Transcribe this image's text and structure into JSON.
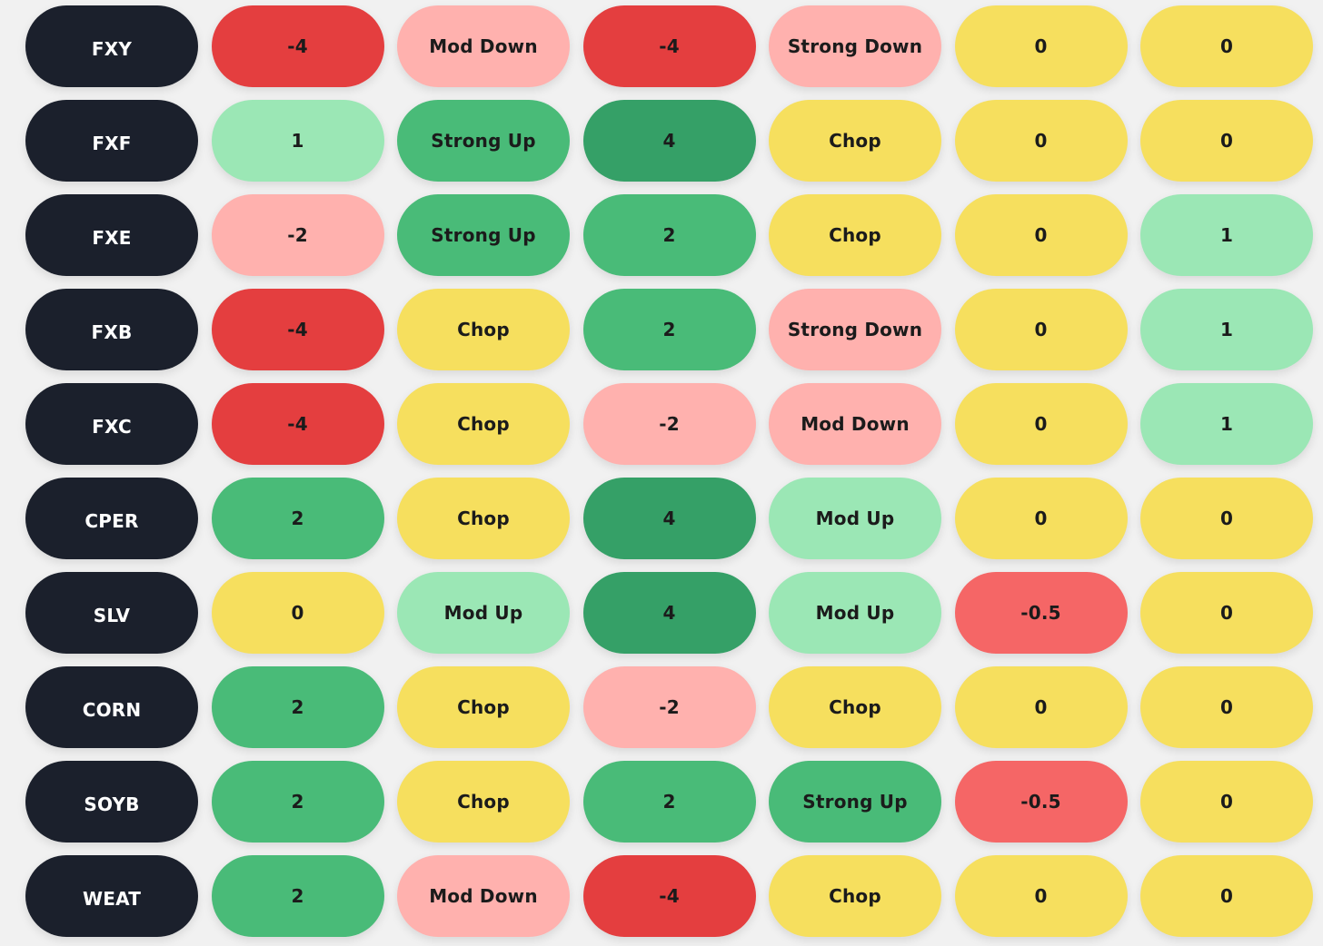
{
  "colors": {
    "ticker": "#1b202c",
    "strongdown": "#e43e3f",
    "moddown": "#ffb1ae",
    "weakdown": "#f56666",
    "neutral": "#f6df5e",
    "modup": "#9be7b5",
    "strongup": "#49bb78",
    "maxup": "#35a067"
  },
  "rows": [
    {
      "ticker": "FXY",
      "cells": [
        {
          "text": "-4",
          "tone": "strongdown"
        },
        {
          "text": "Mod Down",
          "tone": "moddown"
        },
        {
          "text": "-4",
          "tone": "strongdown"
        },
        {
          "text": "Strong Down",
          "tone": "moddown"
        },
        {
          "text": "0",
          "tone": "neutral"
        },
        {
          "text": "0",
          "tone": "neutral"
        }
      ]
    },
    {
      "ticker": "FXF",
      "cells": [
        {
          "text": "1",
          "tone": "modup"
        },
        {
          "text": "Strong Up",
          "tone": "strongup"
        },
        {
          "text": "4",
          "tone": "maxup"
        },
        {
          "text": "Chop",
          "tone": "neutral"
        },
        {
          "text": "0",
          "tone": "neutral"
        },
        {
          "text": "0",
          "tone": "neutral"
        }
      ]
    },
    {
      "ticker": "FXE",
      "cells": [
        {
          "text": "-2",
          "tone": "moddown"
        },
        {
          "text": "Strong Up",
          "tone": "strongup"
        },
        {
          "text": "2",
          "tone": "strongup"
        },
        {
          "text": "Chop",
          "tone": "neutral"
        },
        {
          "text": "0",
          "tone": "neutral"
        },
        {
          "text": "1",
          "tone": "modup"
        }
      ]
    },
    {
      "ticker": "FXB",
      "cells": [
        {
          "text": "-4",
          "tone": "strongdown"
        },
        {
          "text": "Chop",
          "tone": "neutral"
        },
        {
          "text": "2",
          "tone": "strongup"
        },
        {
          "text": "Strong Down",
          "tone": "moddown"
        },
        {
          "text": "0",
          "tone": "neutral"
        },
        {
          "text": "1",
          "tone": "modup"
        }
      ]
    },
    {
      "ticker": "FXC",
      "cells": [
        {
          "text": "-4",
          "tone": "strongdown"
        },
        {
          "text": "Chop",
          "tone": "neutral"
        },
        {
          "text": "-2",
          "tone": "moddown"
        },
        {
          "text": "Mod Down",
          "tone": "moddown"
        },
        {
          "text": "0",
          "tone": "neutral"
        },
        {
          "text": "1",
          "tone": "modup"
        }
      ]
    },
    {
      "ticker": "CPER",
      "cells": [
        {
          "text": "2",
          "tone": "strongup"
        },
        {
          "text": "Chop",
          "tone": "neutral"
        },
        {
          "text": "4",
          "tone": "maxup"
        },
        {
          "text": "Mod Up",
          "tone": "modup"
        },
        {
          "text": "0",
          "tone": "neutral"
        },
        {
          "text": "0",
          "tone": "neutral"
        }
      ]
    },
    {
      "ticker": "SLV",
      "cells": [
        {
          "text": "0",
          "tone": "neutral"
        },
        {
          "text": "Mod Up",
          "tone": "modup"
        },
        {
          "text": "4",
          "tone": "maxup"
        },
        {
          "text": "Mod Up",
          "tone": "modup"
        },
        {
          "text": "-0.5",
          "tone": "weakdown"
        },
        {
          "text": "0",
          "tone": "neutral"
        }
      ]
    },
    {
      "ticker": "CORN",
      "cells": [
        {
          "text": "2",
          "tone": "strongup"
        },
        {
          "text": "Chop",
          "tone": "neutral"
        },
        {
          "text": "-2",
          "tone": "moddown"
        },
        {
          "text": "Chop",
          "tone": "neutral"
        },
        {
          "text": "0",
          "tone": "neutral"
        },
        {
          "text": "0",
          "tone": "neutral"
        }
      ]
    },
    {
      "ticker": "SOYB",
      "cells": [
        {
          "text": "2",
          "tone": "strongup"
        },
        {
          "text": "Chop",
          "tone": "neutral"
        },
        {
          "text": "2",
          "tone": "strongup"
        },
        {
          "text": "Strong Up",
          "tone": "strongup"
        },
        {
          "text": "-0.5",
          "tone": "weakdown"
        },
        {
          "text": "0",
          "tone": "neutral"
        }
      ]
    },
    {
      "ticker": "WEAT",
      "cells": [
        {
          "text": "2",
          "tone": "strongup"
        },
        {
          "text": "Mod Down",
          "tone": "moddown"
        },
        {
          "text": "-4",
          "tone": "strongdown"
        },
        {
          "text": "Chop",
          "tone": "neutral"
        },
        {
          "text": "0",
          "tone": "neutral"
        },
        {
          "text": "0",
          "tone": "neutral"
        }
      ]
    }
  ]
}
